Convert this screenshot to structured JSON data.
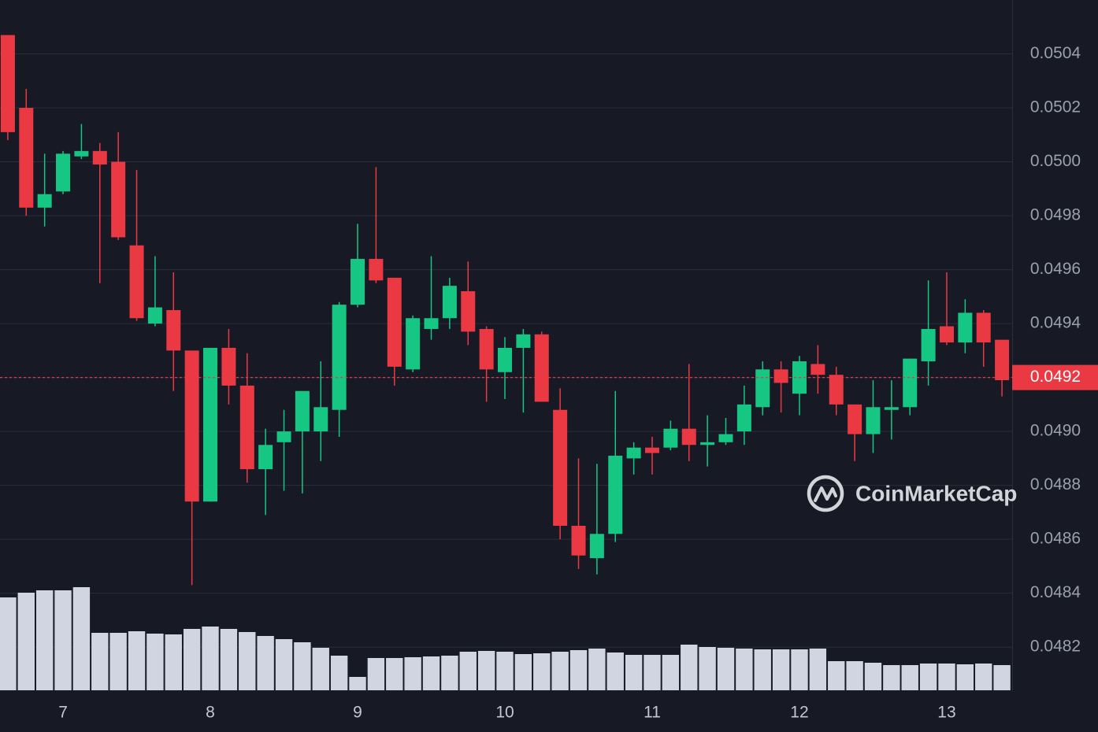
{
  "chart_data": {
    "type": "candlestick",
    "x": [
      6.625,
      6.75,
      6.875,
      7,
      7.125,
      7.25,
      7.375,
      7.5,
      7.625,
      7.75,
      7.875,
      8,
      8.125,
      8.25,
      8.375,
      8.5,
      8.625,
      8.75,
      8.875,
      9,
      9.125,
      9.25,
      9.375,
      9.5,
      9.625,
      9.75,
      9.875,
      10,
      10.125,
      10.25,
      10.375,
      10.5,
      10.625,
      10.75,
      10.875,
      11,
      11.125,
      11.25,
      11.375,
      11.5,
      11.625,
      11.75,
      11.875,
      12,
      12.125,
      12.25,
      12.375,
      12.5,
      12.625,
      12.75,
      12.875,
      13,
      13.125,
      13.25,
      13.375
    ],
    "open": [
      0.05047,
      0.0502,
      0.04983,
      0.04989,
      0.05002,
      0.05004,
      0.05,
      0.04969,
      0.0494,
      0.04945,
      0.0493,
      0.04874,
      0.04931,
      0.04917,
      0.04886,
      0.04896,
      0.049,
      0.049,
      0.04908,
      0.04947,
      0.04964,
      0.04957,
      0.04923,
      0.04938,
      0.04942,
      0.04952,
      0.04938,
      0.04922,
      0.04931,
      0.04936,
      0.04908,
      0.04865,
      0.04853,
      0.04862,
      0.0489,
      0.04894,
      0.04894,
      0.04901,
      0.04895,
      0.04896,
      0.049,
      0.04909,
      0.04923,
      0.04914,
      0.04925,
      0.04921,
      0.0491,
      0.04899,
      0.04908,
      0.04909,
      0.04926,
      0.04939,
      0.04933,
      0.04944,
      0.04934
    ],
    "high": [
      0.05047,
      0.05027,
      0.05003,
      0.05004,
      0.05014,
      0.05007,
      0.05011,
      0.04997,
      0.04965,
      0.04959,
      0.0493,
      0.04931,
      0.04938,
      0.04929,
      0.04901,
      0.04908,
      0.04915,
      0.04926,
      0.04948,
      0.04977,
      0.04998,
      0.04957,
      0.04943,
      0.04965,
      0.04957,
      0.04963,
      0.04939,
      0.04935,
      0.04938,
      0.04937,
      0.04916,
      0.0489,
      0.04888,
      0.04915,
      0.04896,
      0.04898,
      0.04904,
      0.04925,
      0.04906,
      0.04905,
      0.04917,
      0.04926,
      0.04926,
      0.04928,
      0.04932,
      0.04924,
      0.0491,
      0.04919,
      0.04919,
      0.04927,
      0.04956,
      0.04959,
      0.04949,
      0.04945,
      0.04934
    ],
    "low": [
      0.05008,
      0.0498,
      0.04976,
      0.04988,
      0.05001,
      0.04955,
      0.04971,
      0.04941,
      0.04939,
      0.04915,
      0.04843,
      0.04874,
      0.0491,
      0.04881,
      0.04869,
      0.04878,
      0.04877,
      0.04889,
      0.04898,
      0.04946,
      0.04955,
      0.04917,
      0.04922,
      0.04934,
      0.04938,
      0.04932,
      0.04911,
      0.04912,
      0.04907,
      0.04911,
      0.0486,
      0.04849,
      0.04847,
      0.04859,
      0.04884,
      0.04884,
      0.04893,
      0.04889,
      0.04887,
      0.04895,
      0.04895,
      0.04906,
      0.04907,
      0.04906,
      0.04914,
      0.04906,
      0.04889,
      0.04892,
      0.04897,
      0.04906,
      0.04917,
      0.04932,
      0.04929,
      0.04924,
      0.04913
    ],
    "close": [
      0.05011,
      0.04983,
      0.04988,
      0.05003,
      0.05004,
      0.04999,
      0.04972,
      0.04942,
      0.04946,
      0.0493,
      0.04874,
      0.04931,
      0.04917,
      0.04886,
      0.04895,
      0.049,
      0.04915,
      0.04909,
      0.04947,
      0.04964,
      0.04956,
      0.04924,
      0.04942,
      0.04942,
      0.04954,
      0.04937,
      0.04923,
      0.04931,
      0.04936,
      0.04911,
      0.04865,
      0.04854,
      0.04862,
      0.04891,
      0.04894,
      0.04892,
      0.04901,
      0.04895,
      0.04896,
      0.04899,
      0.0491,
      0.04923,
      0.04918,
      0.04926,
      0.04921,
      0.0491,
      0.04899,
      0.04909,
      0.04909,
      0.04927,
      0.04938,
      0.04933,
      0.04944,
      0.04933,
      0.04919
    ],
    "volume": [
      118,
      124,
      127,
      127,
      131,
      73,
      73,
      75,
      72,
      71,
      78,
      81,
      78,
      74,
      69,
      65,
      61,
      54,
      44,
      17,
      41,
      41,
      42,
      43,
      44,
      49,
      50,
      49,
      46,
      47,
      49,
      51,
      53,
      48,
      45,
      45,
      45,
      58,
      55,
      54,
      53,
      52,
      52,
      52,
      53,
      37,
      37,
      35,
      32,
      32,
      34,
      34,
      33,
      34,
      32
    ],
    "up_color": "#16c784",
    "down_color": "#ea3943",
    "volume_color": "#d1d5e1",
    "xlim": [
      6.572,
      13.444
    ],
    "xticks": [
      7,
      8,
      9,
      10,
      11,
      12,
      13
    ],
    "ylim": [
      0.04804,
      0.0506
    ],
    "yticks": [
      0.0482,
      0.0484,
      0.0486,
      0.0488,
      {
        "value": 0.049,
        "label": "0.0490"
      },
      0.0492,
      0.0494,
      0.0496,
      0.0498,
      {
        "value": 0.05,
        "label": "0.0500"
      },
      0.0502,
      0.0504
    ],
    "volume_lim": [
      0,
      140
    ],
    "last_price": 0.0492,
    "grid": true,
    "watermark": "CoinMarketCap"
  }
}
